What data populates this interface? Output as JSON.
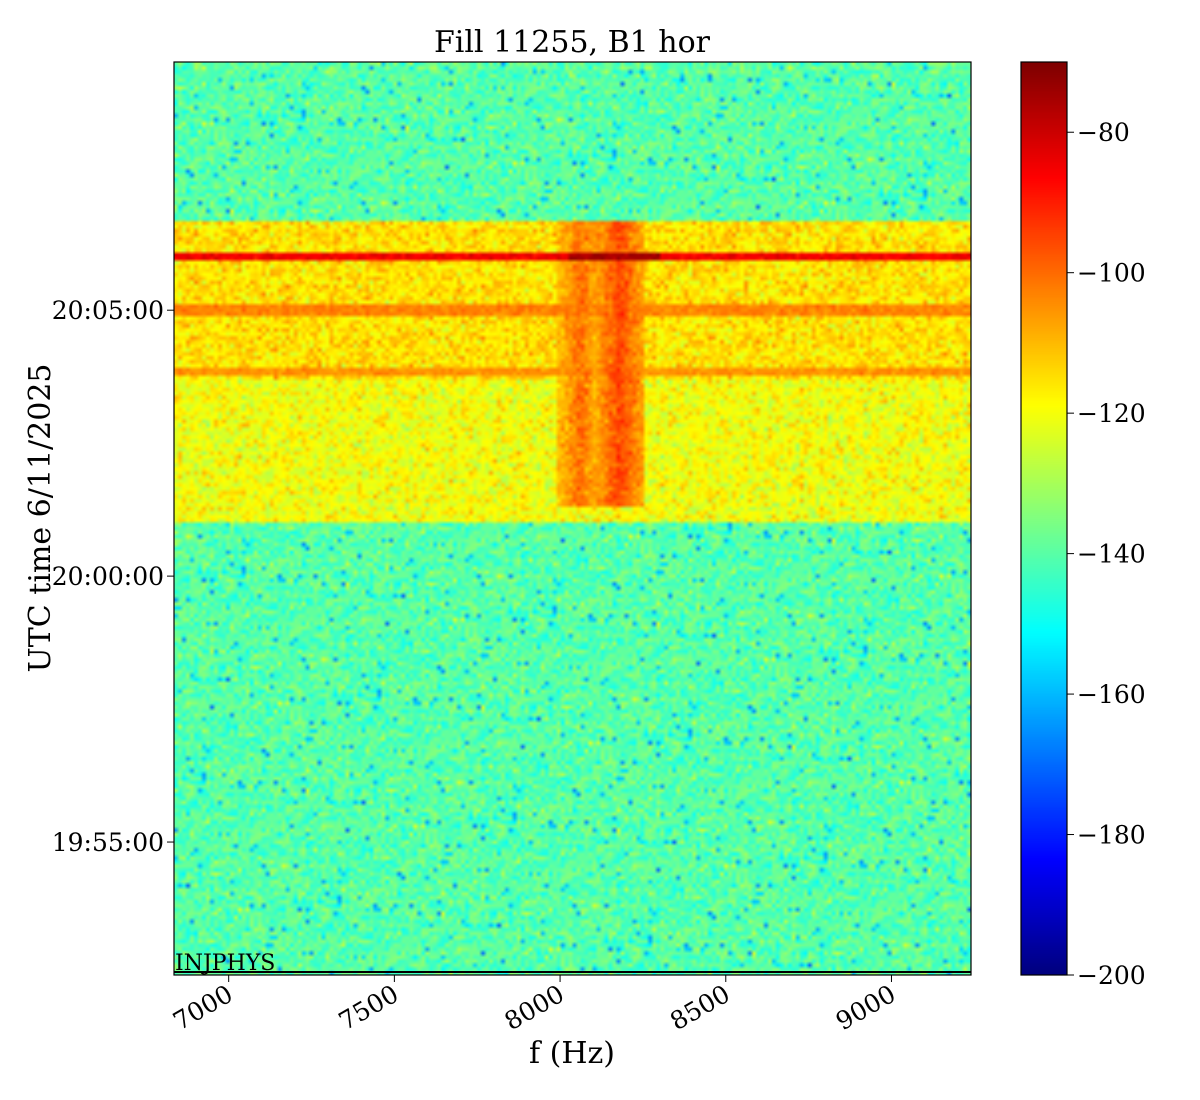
{
  "chart_data": {
    "type": "heatmap",
    "title": "Fill 11255, B1 hor",
    "xlabel": "f (Hz)",
    "ylabel": "UTC time 6/11/2025",
    "x_ticks": [
      7000,
      7500,
      8000,
      8500,
      9000
    ],
    "x_tick_labels": [
      "7000",
      "7500",
      "8000",
      "8500",
      "9000"
    ],
    "xlim": [
      6835,
      9240
    ],
    "y_ticks": [
      "19:55:00",
      "20:00:00",
      "20:05:00"
    ],
    "ylim": [
      "19:52:30",
      "20:09:40"
    ],
    "colorbar": {
      "colormap": "jet",
      "range": [
        -200,
        -70
      ],
      "ticks": [
        -80,
        -100,
        -120,
        -140,
        -160,
        -180,
        -200
      ],
      "tick_labels": [
        "−80",
        "−100",
        "−120",
        "−140",
        "−160",
        "−180",
        "−200"
      ]
    },
    "baseline_level_db": -140,
    "features": [
      {
        "kind": "band",
        "t_start": "20:01:00",
        "t_end": "20:03:40",
        "level_db": -120
      },
      {
        "kind": "band",
        "t_start": "20:03:40",
        "t_end": "20:06:40",
        "level_db": -115
      },
      {
        "kind": "line",
        "t": "20:06:00",
        "level_db": -85
      },
      {
        "kind": "line",
        "t": "20:05:00",
        "level_db": -103
      },
      {
        "kind": "line",
        "t": "20:03:50",
        "level_db": -105
      },
      {
        "kind": "peak",
        "f": 8060,
        "t_start": "20:01:20",
        "t_end": "20:06:40",
        "level_db": -100
      },
      {
        "kind": "peak",
        "f": 8180,
        "t_start": "20:01:20",
        "t_end": "20:06:40",
        "level_db": -95
      }
    ],
    "annotations": [
      {
        "text": "INJPHYS",
        "t": "19:52:30"
      }
    ],
    "grid": false
  }
}
